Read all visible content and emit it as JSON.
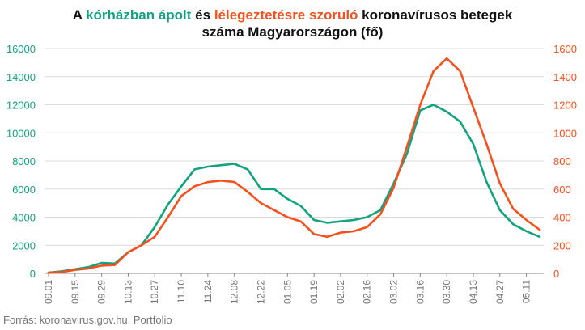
{
  "title": {
    "part1": "A ",
    "hosp": "kórházban ápolt",
    "part2": " és ",
    "vent": "lélegeztetésre szoruló",
    "part3": " koronavírusos betegek",
    "line2": "száma Magyarországon  (fő)"
  },
  "source": "Forrás: koronavirus.gov.hu, Portfolio",
  "colors": {
    "hosp": "#13a37f",
    "vent": "#f4511e",
    "grid": "#dcdcdc",
    "axis": "#888888"
  },
  "chart_data": {
    "type": "line",
    "x": [
      "09.01",
      "09.08",
      "09.15",
      "09.22",
      "09.29",
      "10.06",
      "10.13",
      "10.20",
      "10.27",
      "11.03",
      "11.10",
      "11.17",
      "11.24",
      "12.01",
      "12.08",
      "12.15",
      "12.22",
      "12.29",
      "01.05",
      "01.12",
      "01.19",
      "01.26",
      "02.02",
      "02.09",
      "02.16",
      "02.23",
      "03.02",
      "03.09",
      "03.16",
      "03.23",
      "03.30",
      "04.06",
      "04.13",
      "04.20",
      "04.27",
      "05.04",
      "05.11",
      "05.15"
    ],
    "x_tick_labels": [
      "09.01",
      "09.15",
      "09.29",
      "10.13",
      "10.27",
      "11.10",
      "11.24",
      "12.08",
      "12.22",
      "01.05",
      "01.19",
      "02.02",
      "02.16",
      "03.02",
      "03.16",
      "03.30",
      "04.13",
      "04.27",
      "05.11"
    ],
    "y_left": {
      "ylim": [
        0,
        16000
      ],
      "ticks": [
        "0",
        "2000",
        "4000",
        "6000",
        "8000",
        "10000",
        "12000",
        "14000",
        "16000"
      ]
    },
    "y_right": {
      "ylim": [
        0,
        1600
      ],
      "ticks": [
        "0",
        "200",
        "400",
        "600",
        "800",
        "1000",
        "1200",
        "1400",
        "1600"
      ]
    },
    "series": [
      {
        "name": "kórházban ápolt",
        "axis": "left",
        "color": "#13a37f",
        "values": [
          50,
          150,
          300,
          450,
          750,
          700,
          1500,
          2000,
          3300,
          4900,
          6200,
          7400,
          7600,
          7700,
          7800,
          7400,
          6000,
          6000,
          5300,
          4800,
          3800,
          3600,
          3700,
          3800,
          4000,
          4500,
          6400,
          8500,
          11600,
          12000,
          11500,
          10800,
          9200,
          6500,
          4500,
          3500,
          3000,
          2600
        ]
      },
      {
        "name": "lélegeztetésre szoruló",
        "axis": "right",
        "color": "#f4511e",
        "values": [
          5,
          10,
          25,
          35,
          55,
          60,
          150,
          200,
          260,
          400,
          550,
          620,
          650,
          660,
          650,
          580,
          500,
          450,
          400,
          370,
          280,
          260,
          290,
          300,
          330,
          420,
          610,
          900,
          1200,
          1440,
          1530,
          1440,
          1180,
          920,
          640,
          460,
          380,
          310
        ]
      }
    ],
    "grid": true
  }
}
